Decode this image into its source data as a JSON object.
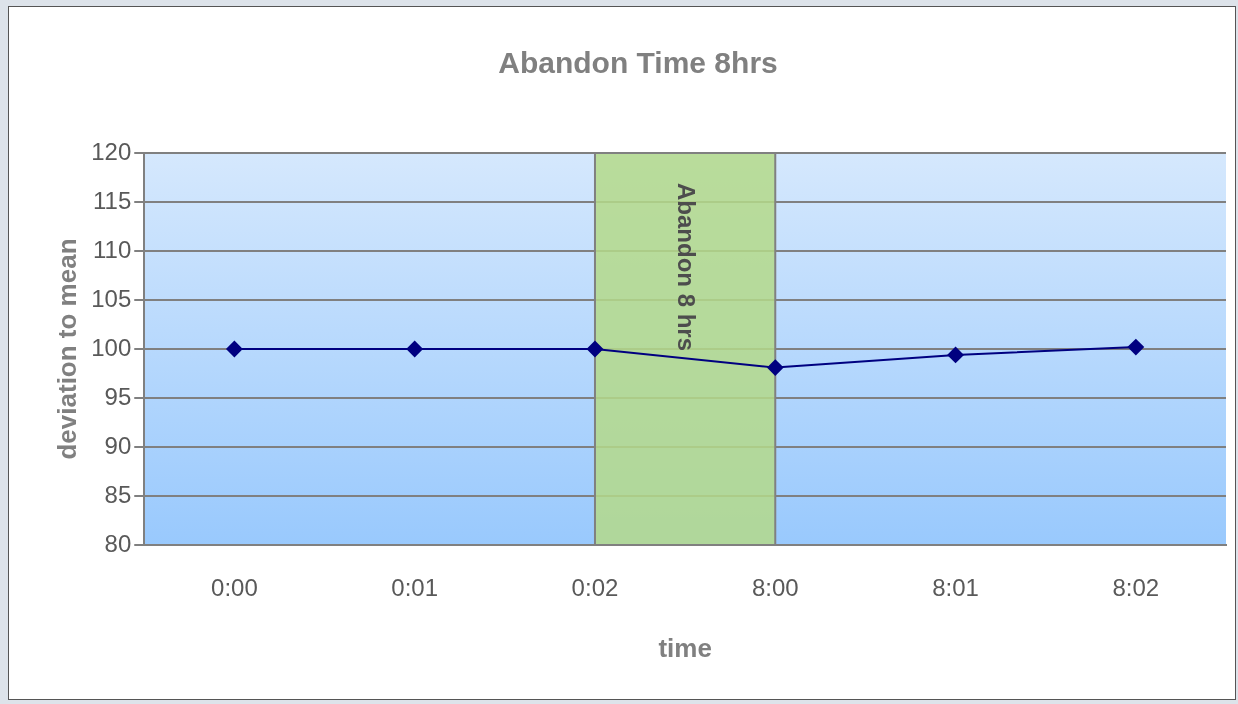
{
  "chart_data": {
    "type": "line",
    "title": "Abandon Time 8hrs",
    "xlabel": "time",
    "ylabel": "deviation to mean",
    "categories": [
      "0:00",
      "0:01",
      "0:02",
      "8:00",
      "8:01",
      "8:02"
    ],
    "series": [
      {
        "color": "#000080",
        "values": [
          100,
          100,
          100,
          98.1,
          99.4,
          100.2
        ]
      }
    ],
    "ylim": [
      80,
      120
    ],
    "yticks": [
      80,
      85,
      90,
      95,
      100,
      105,
      110,
      115,
      120
    ],
    "grid": "y",
    "legend": false,
    "marker": "diamond",
    "line_style": "solid",
    "bands": [
      {
        "axis": "x",
        "from": "0:02",
        "to": "8:00",
        "label": "Abandon 8 hrs",
        "color": "#b4d98a"
      }
    ]
  }
}
